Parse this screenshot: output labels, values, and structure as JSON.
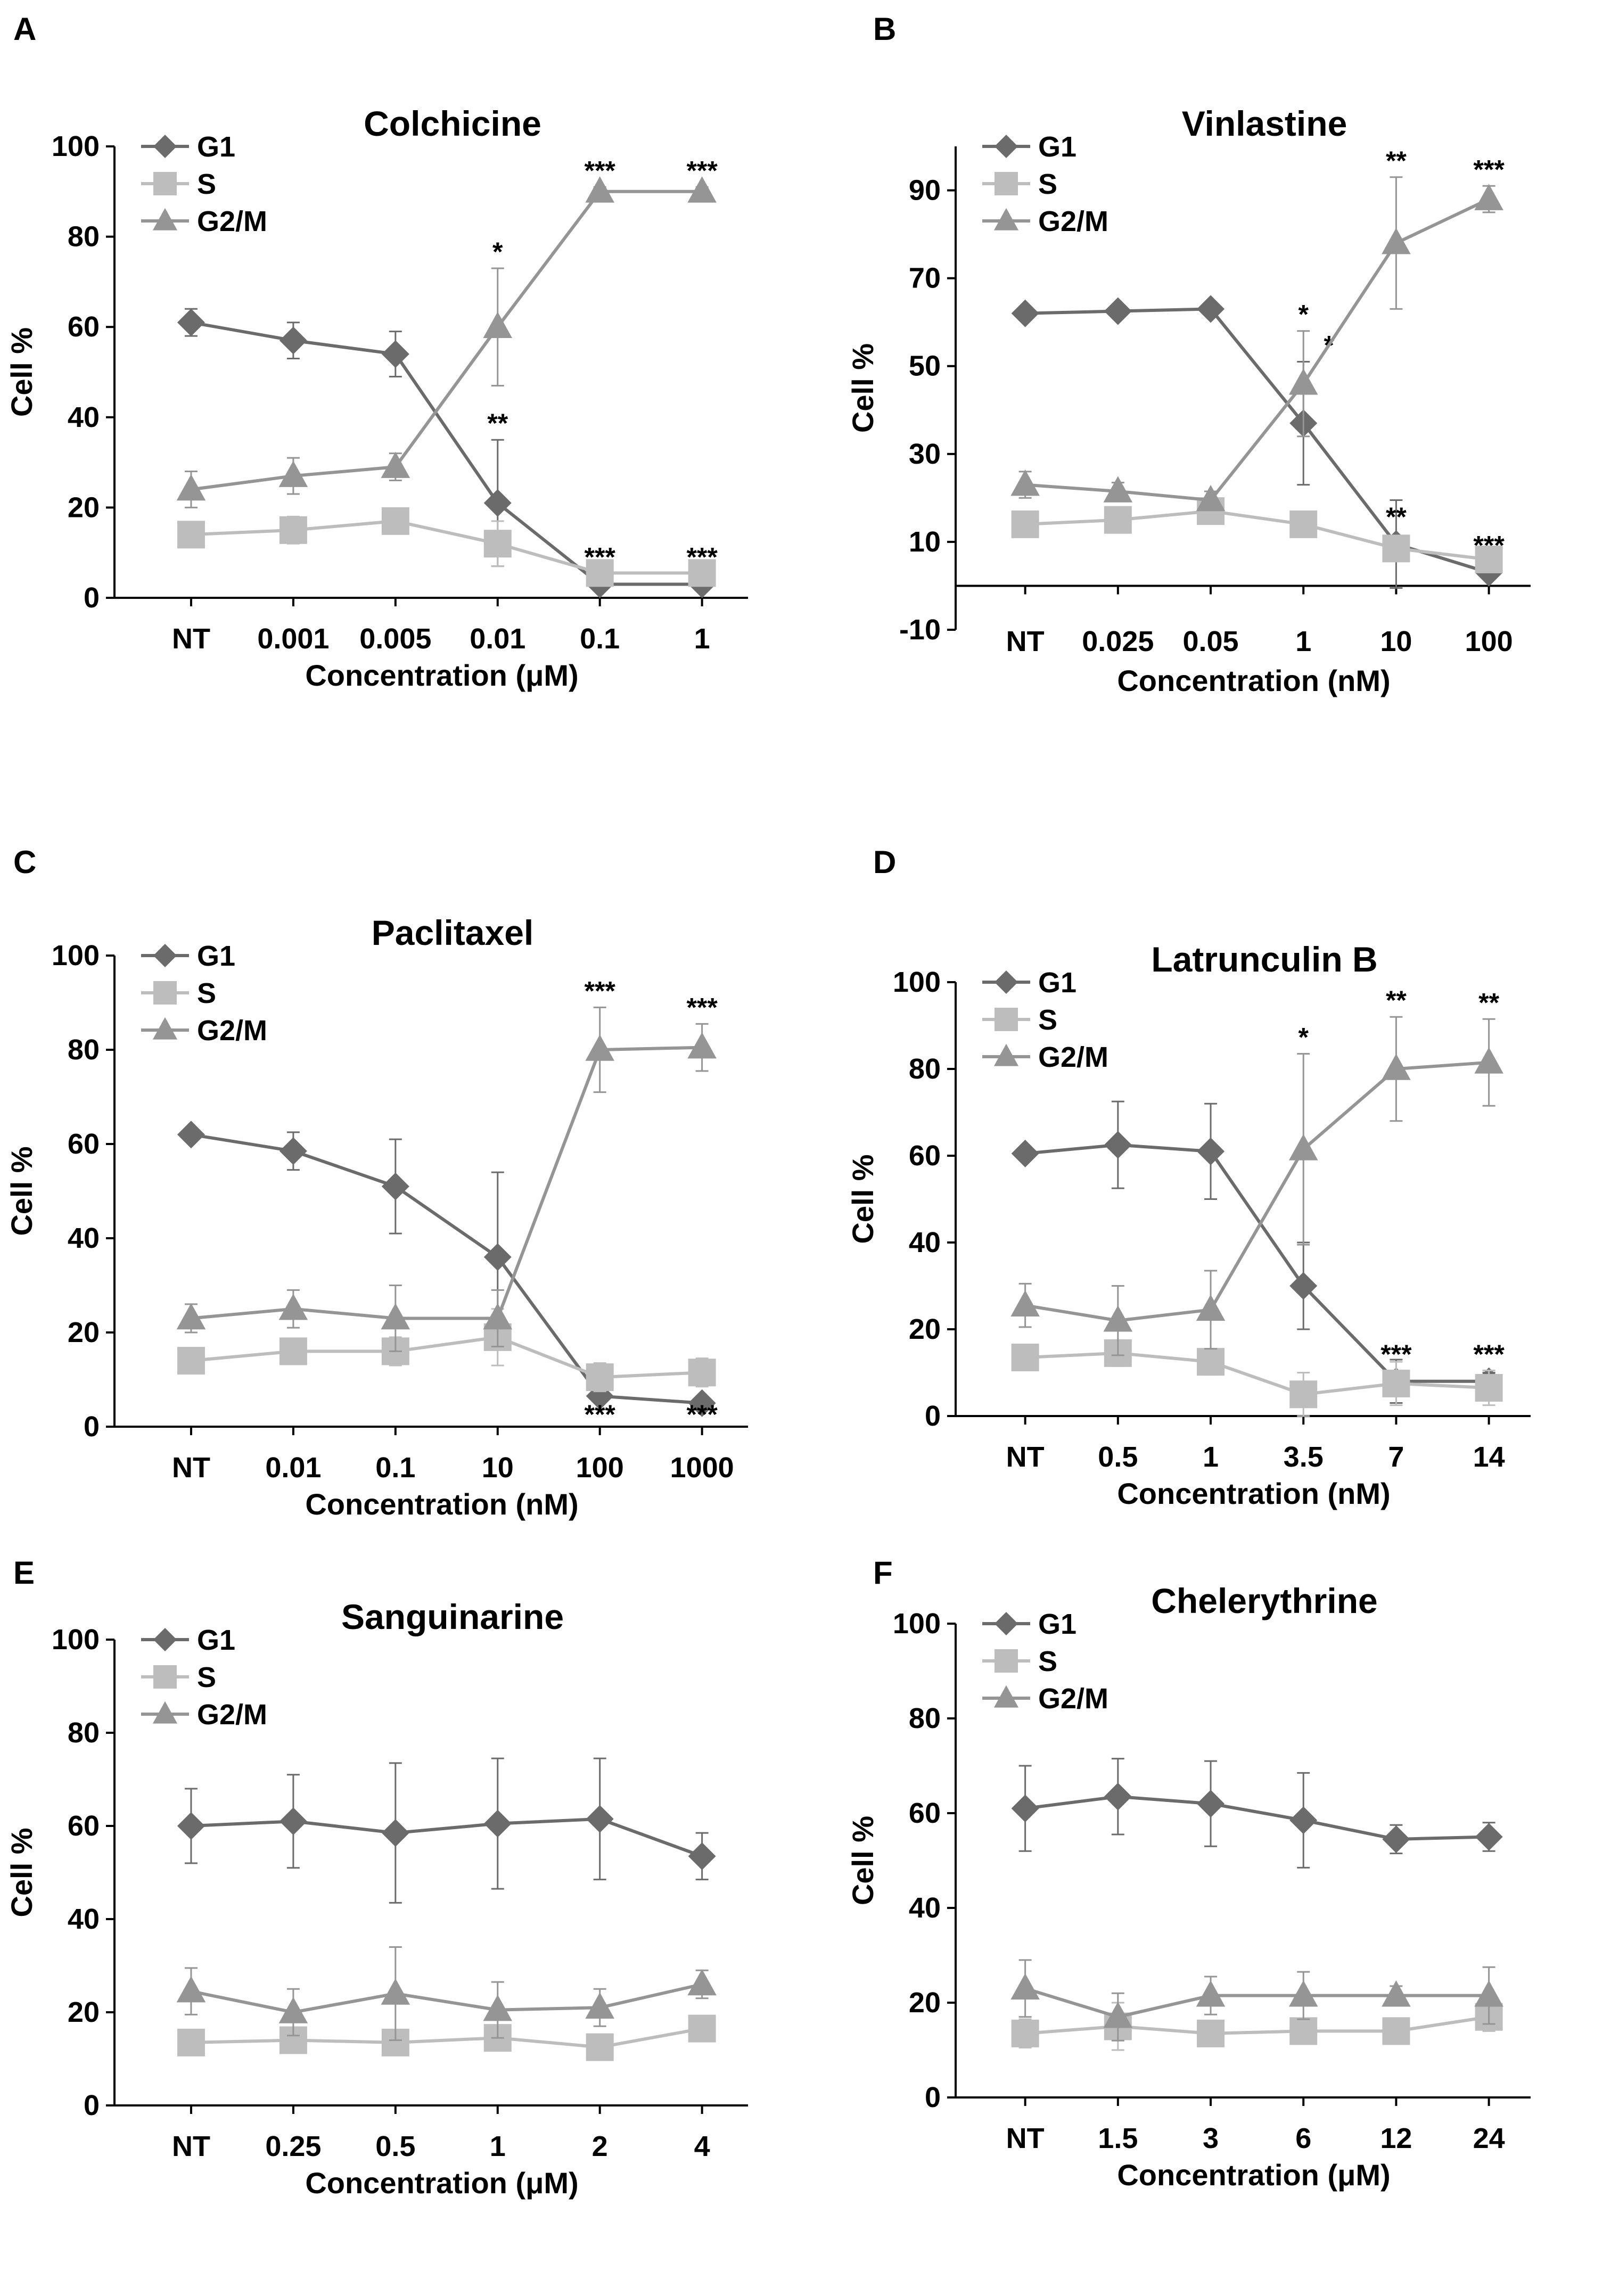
{
  "colors": {
    "G1": "#6b6b6b",
    "S": "#bdbdbd",
    "G2M": "#959595",
    "axis": "#000000"
  },
  "chart_data": [
    {
      "panel": "A",
      "type": "line",
      "title": "Colchicine",
      "ylabel": "Cell  %",
      "xlabel": "Concentration  (μM)",
      "categories": [
        "NT",
        "0.001",
        "0.005",
        "0.01",
        "0.1",
        "1"
      ],
      "ylim": [
        0,
        100
      ],
      "yticks": [
        "0",
        "20",
        "40",
        "60",
        "80",
        "100"
      ],
      "legend_position": "top-left",
      "series": [
        {
          "name": "G1",
          "marker": "diamond",
          "values": [
            61,
            57,
            54,
            21,
            3,
            3
          ],
          "errors": [
            3,
            4,
            5,
            14,
            1,
            1
          ],
          "marks": [
            "",
            "",
            "",
            "**",
            "***",
            "***"
          ]
        },
        {
          "name": "S",
          "marker": "square",
          "values": [
            14,
            15,
            17,
            12,
            5.5,
            5.5
          ],
          "errors": [
            2,
            3,
            2,
            5,
            1,
            1
          ],
          "marks": [
            "",
            "",
            "",
            "",
            "",
            ""
          ]
        },
        {
          "name": "G2/M",
          "marker": "triangle",
          "values": [
            24,
            27,
            29,
            60,
            90,
            90
          ],
          "errors": [
            4,
            4,
            3,
            13,
            1,
            1
          ],
          "marks": [
            "",
            "",
            "",
            "*",
            "***",
            "***"
          ]
        }
      ]
    },
    {
      "panel": "B",
      "type": "line",
      "title": "Vinlastine",
      "ylabel": "Cell  %",
      "xlabel": "Concentration (nM)",
      "categories": [
        "NT",
        "0.025",
        "0.05",
        "1",
        "10",
        "100"
      ],
      "ylim": [
        -10,
        100
      ],
      "yticks": [
        "-10",
        "10",
        "30",
        "50",
        "70",
        "90"
      ],
      "legend_position": "top-left",
      "series": [
        {
          "name": "G1",
          "marker": "diamond",
          "values": [
            62,
            62.5,
            63,
            37,
            9.5,
            3
          ],
          "errors": [
            1,
            1,
            1,
            14,
            10,
            1
          ],
          "marks": [
            "",
            "",
            "",
            "*",
            "**",
            "***"
          ]
        },
        {
          "name": "S",
          "marker": "square",
          "values": [
            14,
            15,
            17,
            14,
            8.5,
            6
          ],
          "errors": [
            2,
            2,
            2,
            2,
            2,
            1
          ],
          "marks": [
            "",
            "",
            "",
            "",
            "",
            ""
          ]
        },
        {
          "name": "G2/M",
          "marker": "triangle",
          "values": [
            23,
            21.5,
            19.5,
            46,
            78,
            88
          ],
          "errors": [
            3,
            2,
            2,
            12,
            15,
            3
          ],
          "marks": [
            "",
            "",
            "",
            "*",
            "**",
            "***"
          ]
        }
      ]
    },
    {
      "panel": "C",
      "type": "line",
      "title": "Paclitaxel",
      "ylabel": "Cell %",
      "xlabel": "Concentration  (nM)",
      "categories": [
        "NT",
        "0.01",
        "0.1",
        "10",
        "100",
        "1000"
      ],
      "ylim": [
        0,
        100
      ],
      "yticks": [
        "0",
        "20",
        "40",
        "60",
        "80",
        "100"
      ],
      "legend_position": "top-left",
      "series": [
        {
          "name": "G1",
          "marker": "diamond",
          "values": [
            62,
            58.5,
            51,
            36,
            6.5,
            5
          ],
          "errors": [
            1,
            4,
            10,
            18,
            1,
            1
          ],
          "marks": [
            "",
            "",
            "",
            "",
            "***",
            "***"
          ]
        },
        {
          "name": "S",
          "marker": "square",
          "values": [
            14,
            16,
            16,
            19,
            10.5,
            11.5
          ],
          "errors": [
            2,
            2,
            3,
            6,
            3,
            3
          ],
          "marks": [
            "",
            "",
            "",
            "",
            "",
            ""
          ]
        },
        {
          "name": "G2/M",
          "marker": "triangle",
          "values": [
            23,
            25,
            23,
            23,
            80,
            80.5
          ],
          "errors": [
            3,
            4,
            7,
            6,
            9,
            5
          ],
          "marks": [
            "",
            "",
            "",
            "",
            "***",
            "***"
          ]
        }
      ]
    },
    {
      "panel": "D",
      "type": "line",
      "title": "Latrunculin B",
      "ylabel": "Cell %",
      "xlabel": "Concentration  (nM)",
      "categories": [
        "NT",
        "0.5",
        "1",
        "3.5",
        "7",
        "14"
      ],
      "ylim": [
        0,
        100
      ],
      "yticks": [
        "0",
        "20",
        "40",
        "60",
        "80",
        "100"
      ],
      "legend_position": "top-left",
      "series": [
        {
          "name": "G1",
          "marker": "diamond",
          "values": [
            60.5,
            62.5,
            61,
            30,
            8,
            8
          ],
          "errors": [
            1,
            10,
            11,
            10,
            5,
            2
          ],
          "marks": [
            "",
            "",
            "",
            "",
            "***",
            "***"
          ]
        },
        {
          "name": "S",
          "marker": "square",
          "values": [
            13.5,
            14.5,
            12.5,
            5,
            7.5,
            6.5
          ],
          "errors": [
            2,
            3,
            3,
            5,
            5,
            4
          ],
          "marks": [
            "",
            "",
            "",
            "",
            "",
            ""
          ]
        },
        {
          "name": "G2/M",
          "marker": "triangle",
          "values": [
            25.5,
            22,
            24.5,
            61.5,
            80,
            81.5
          ],
          "errors": [
            5,
            8,
            9,
            22,
            12,
            10
          ],
          "marks": [
            "",
            "",
            "",
            "*",
            "**",
            "**"
          ]
        }
      ]
    },
    {
      "panel": "E",
      "type": "line",
      "title": "Sanguinarine",
      "ylabel": "Cell %",
      "xlabel": "Concentration  (μM)",
      "categories": [
        "NT",
        "0.25",
        "0.5",
        "1",
        "2",
        "4"
      ],
      "ylim": [
        0,
        100
      ],
      "yticks": [
        "0",
        "20",
        "40",
        "60",
        "80",
        "100"
      ],
      "legend_position": "top-left",
      "series": [
        {
          "name": "G1",
          "marker": "diamond",
          "values": [
            60,
            61,
            58.5,
            60.5,
            61.5,
            53.5
          ],
          "errors": [
            8,
            10,
            15,
            14,
            13,
            5
          ],
          "marks": [
            "",
            "",
            "",
            "",
            "",
            ""
          ]
        },
        {
          "name": "S",
          "marker": "square",
          "values": [
            13.5,
            14,
            13.5,
            14.5,
            12.5,
            16.5
          ],
          "errors": [
            2,
            2,
            2,
            2,
            2,
            2
          ],
          "marks": [
            "",
            "",
            "",
            "",
            "",
            ""
          ]
        },
        {
          "name": "G2/M",
          "marker": "triangle",
          "values": [
            24.5,
            20,
            24,
            20.5,
            21,
            26
          ],
          "errors": [
            5,
            5,
            10,
            6,
            4,
            3
          ],
          "marks": [
            "",
            "",
            "",
            "",
            "",
            ""
          ]
        }
      ]
    },
    {
      "panel": "F",
      "type": "line",
      "title": "Chelerythrine",
      "ylabel": "Cell %",
      "xlabel": "Concentration  (μM)",
      "categories": [
        "NT",
        "1.5",
        "3",
        "6",
        "12",
        "24"
      ],
      "ylim": [
        0,
        100
      ],
      "yticks": [
        "0",
        "20",
        "40",
        "60",
        "80",
        "100"
      ],
      "legend_position": "top-left",
      "series": [
        {
          "name": "G1",
          "marker": "diamond",
          "values": [
            61,
            63.5,
            62,
            58.5,
            54.5,
            55
          ],
          "errors": [
            9,
            8,
            9,
            10,
            3,
            3
          ],
          "marks": [
            "",
            "",
            "",
            "",
            "",
            ""
          ]
        },
        {
          "name": "S",
          "marker": "square",
          "values": [
            13.5,
            15,
            13.5,
            14,
            14,
            17
          ],
          "errors": [
            3,
            5,
            2,
            2,
            2,
            3
          ],
          "marks": [
            "",
            "",
            "",
            "",
            "",
            ""
          ]
        },
        {
          "name": "G2/M",
          "marker": "triangle",
          "values": [
            23,
            17,
            21.5,
            21.5,
            21.5,
            21.5
          ],
          "errors": [
            6,
            5,
            4,
            5,
            2,
            6
          ],
          "marks": [
            "",
            "",
            "",
            "",
            "",
            ""
          ]
        }
      ]
    }
  ]
}
